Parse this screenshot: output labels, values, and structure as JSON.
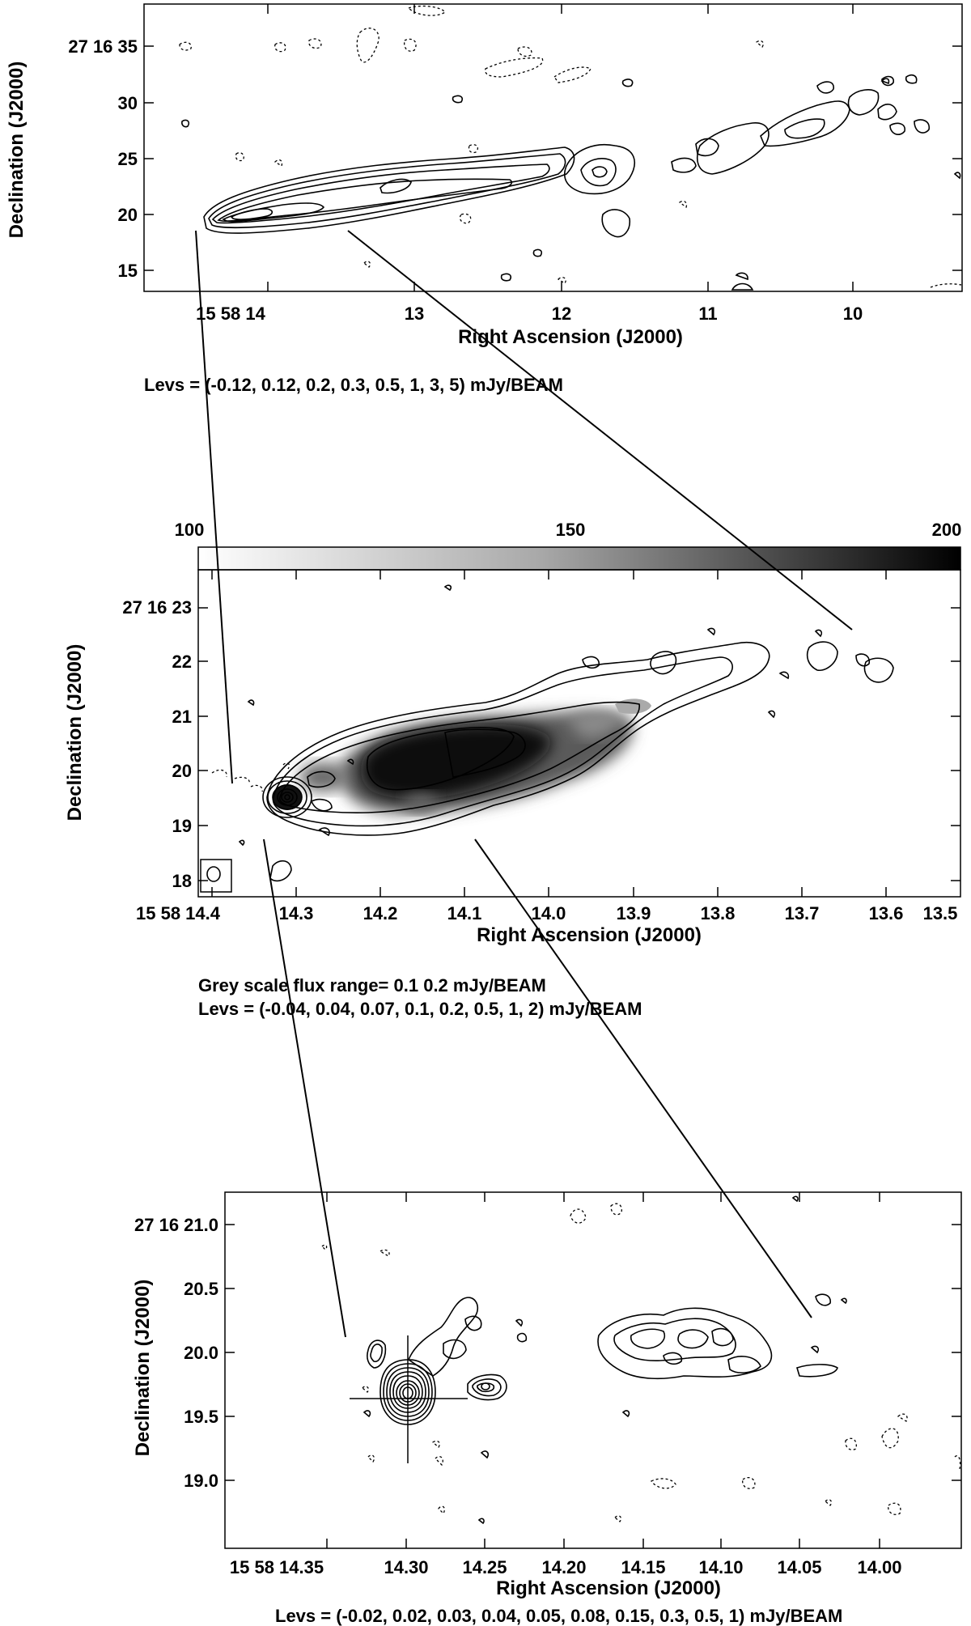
{
  "panel_top": {
    "ylabel": "Declination (J2000)",
    "xlabel": "Right Ascension (J2000)",
    "ytick_labels": [
      "27 16 35",
      "30",
      "25",
      "20",
      "15"
    ],
    "xtick_labels": [
      "15 58 14",
      "13",
      "12",
      "11",
      "10"
    ],
    "levels_text": "Levs = (-0.12, 0.12, 0.2, 0.3, 0.5, 1, 3, 5) mJy/BEAM"
  },
  "panel_middle": {
    "ylabel": "Declination (J2000)",
    "xlabel": "Right Ascension (J2000)",
    "colorbar_labels": [
      "100",
      "150",
      "200"
    ],
    "ytick_labels": [
      "27 16 23",
      "22",
      "21",
      "20",
      "19",
      "18"
    ],
    "xtick_labels": [
      "15 58 14.4",
      "14.3",
      "14.2",
      "14.1",
      "14.0",
      "13.9",
      "13.8",
      "13.7",
      "13.6",
      "13.5"
    ],
    "greyscale_text": "Grey scale flux range= 0.1 0.2 mJy/BEAM",
    "levels_text": "Levs =  (-0.04, 0.04, 0.07, 0.1, 0.2, 0.5, 1, 2) mJy/BEAM"
  },
  "panel_bottom": {
    "ylabel": "Declination (J2000)",
    "xlabel": "Right Ascension (J2000)",
    "ytick_labels": [
      "27 16 21.0",
      "20.5",
      "20.0",
      "19.5",
      "19.0"
    ],
    "xtick_labels": [
      "15 58 14.35",
      "14.30",
      "14.25",
      "14.20",
      "14.15",
      "14.10",
      "14.05",
      "14.00"
    ],
    "levels_text": "Levs = (-0.02, 0.02, 0.03, 0.04, 0.05, 0.08, 0.15, 0.3, 0.5, 1) mJy/BEAM"
  }
}
